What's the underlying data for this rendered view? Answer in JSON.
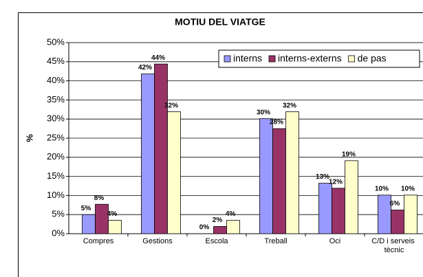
{
  "chart_data": {
    "type": "bar",
    "title": "MOTIU DEL VIATGE",
    "y_label": "%",
    "categories": [
      "Compres",
      "Gestions",
      "Escola",
      "Treball",
      "Oci",
      "C/D i serveis tècnic"
    ],
    "series": [
      {
        "name": "interns",
        "color": "#9999ff",
        "values": [
          5,
          41.8,
          0,
          30.1,
          13.2,
          10.1
        ],
        "value_labels": [
          "5%",
          "42%",
          "0%",
          "30%",
          "13%",
          "10%"
        ]
      },
      {
        "name": "interns-externs",
        "color": "#993366",
        "values": [
          7.7,
          44.4,
          1.9,
          27.5,
          11.9,
          6.2
        ],
        "value_labels": [
          "8%",
          "44%",
          "2%",
          "28%",
          "12%",
          "6%"
        ]
      },
      {
        "name": "de pas",
        "color": "#ffffcc",
        "values": [
          3.5,
          31.9,
          3.5,
          31.9,
          19.1,
          10.1
        ],
        "value_labels": [
          "4%",
          "32%",
          "4%",
          "32%",
          "19%",
          "10%"
        ]
      }
    ],
    "ylim": [
      0,
      50
    ],
    "yticks": [
      {
        "value": 0,
        "label": "0%"
      },
      {
        "value": 5,
        "label": "5%"
      },
      {
        "value": 10,
        "label": "10%"
      },
      {
        "value": 15,
        "label": "15%"
      },
      {
        "value": 20,
        "label": "20%"
      },
      {
        "value": 25,
        "label": "25%"
      },
      {
        "value": 30,
        "label": "30%"
      },
      {
        "value": 35,
        "label": "35%"
      },
      {
        "value": 40,
        "label": "40%"
      },
      {
        "value": 45,
        "label": "45%"
      },
      {
        "value": 50,
        "label": "50%"
      }
    ],
    "grid": true,
    "legend": "top-right"
  }
}
